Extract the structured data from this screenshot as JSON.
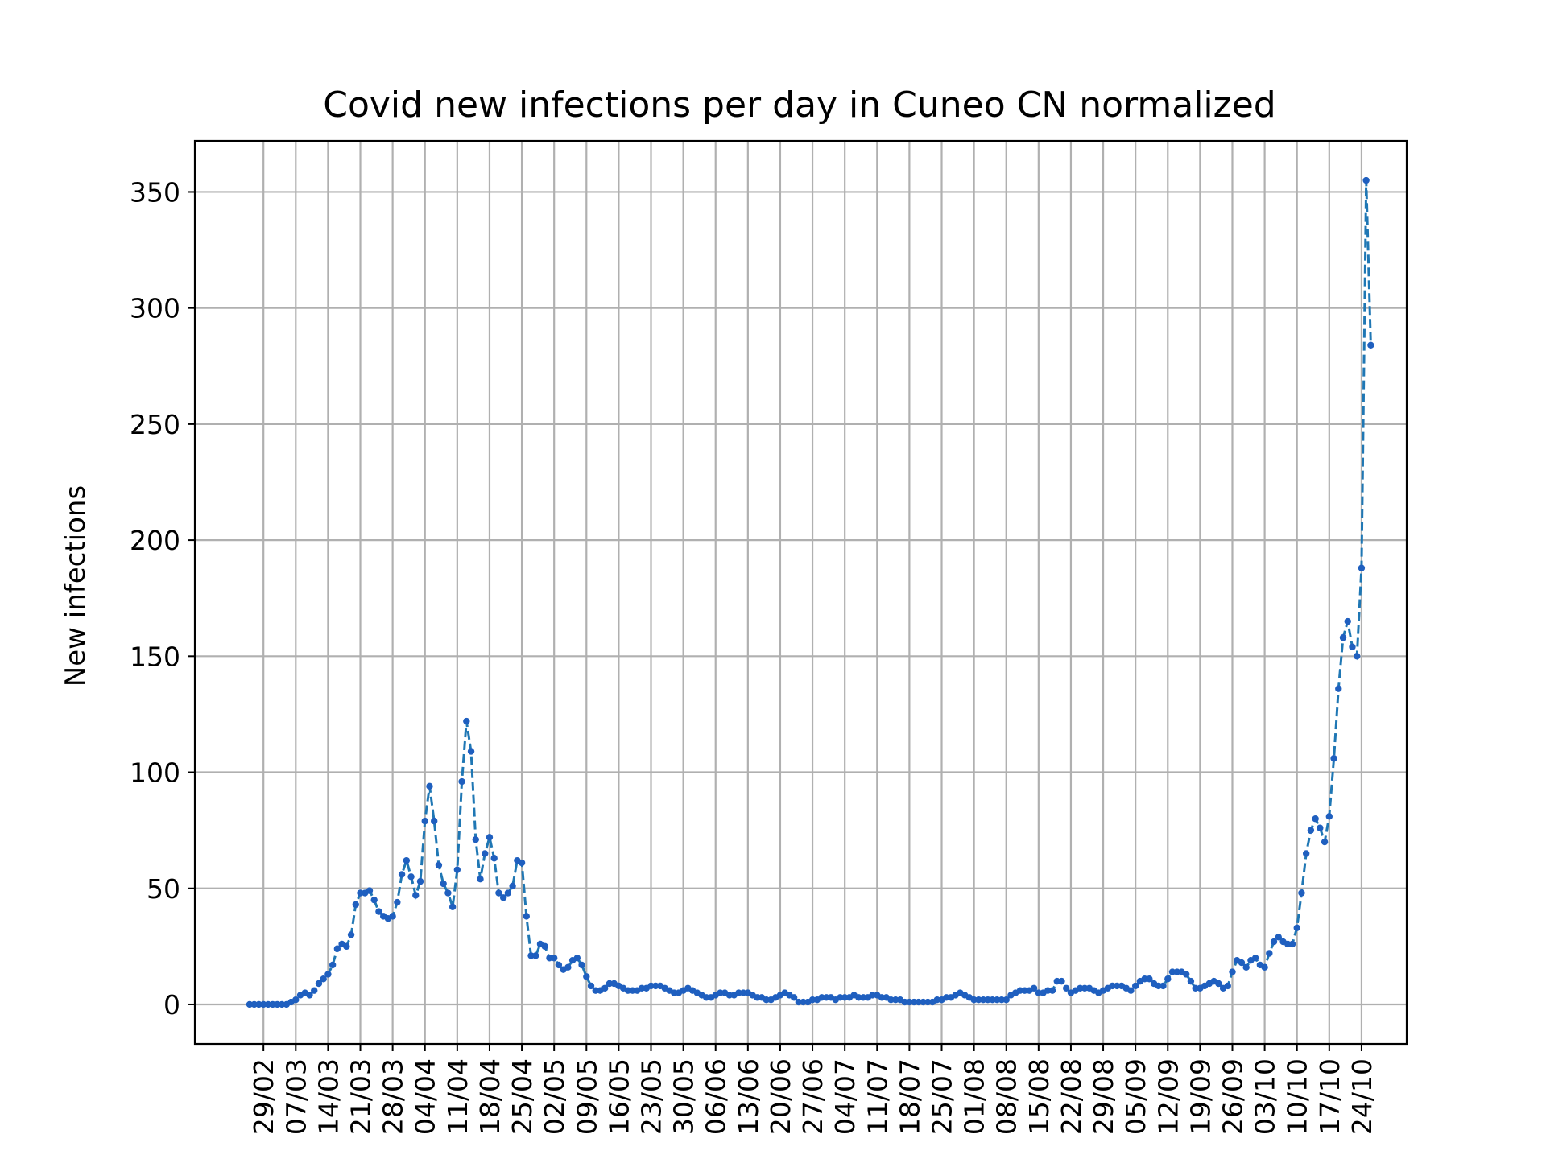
{
  "chart_data": {
    "type": "line",
    "title": "Covid new infections per day in Cuneo CN normalized",
    "xlabel": "",
    "ylabel": "New infections",
    "x_start": "2020-02-26",
    "x_tick_labels": [
      "29/02",
      "07/03",
      "14/03",
      "21/03",
      "28/03",
      "04/04",
      "11/04",
      "18/04",
      "25/04",
      "02/05",
      "09/05",
      "16/05",
      "23/05",
      "30/05",
      "06/06",
      "13/06",
      "20/06",
      "27/06",
      "04/07",
      "11/07",
      "18/07",
      "25/07",
      "01/08",
      "08/08",
      "15/08",
      "22/08",
      "29/08",
      "05/09",
      "12/09",
      "19/09",
      "26/09",
      "03/10",
      "10/10",
      "17/10",
      "24/10"
    ],
    "y_ticks": [
      0,
      50,
      100,
      150,
      200,
      250,
      300,
      350
    ],
    "ylim": [
      -17,
      372
    ],
    "grid": true,
    "colors": {
      "line": "#1f77b4",
      "marker": "#1f5fbf"
    },
    "series": [
      {
        "values": [
          0,
          0,
          0,
          0,
          0,
          0,
          0,
          0,
          0,
          1,
          2,
          4,
          5,
          4,
          6,
          9,
          11,
          13,
          17,
          24,
          26,
          25,
          30,
          43,
          48,
          48,
          49,
          45,
          40,
          38,
          37,
          38,
          44,
          56,
          62,
          55,
          47,
          53,
          79,
          94,
          79,
          60,
          52,
          48,
          42,
          58,
          96,
          122,
          109,
          71,
          54,
          65,
          72,
          63,
          48,
          46,
          48,
          51,
          62,
          61,
          38,
          21,
          21,
          26,
          25,
          20,
          20,
          17,
          15,
          16,
          19,
          20,
          17,
          12,
          8,
          6,
          6,
          7,
          9,
          9,
          8,
          7,
          6,
          6,
          6,
          7,
          7,
          8,
          8,
          8,
          7,
          6,
          5,
          5,
          6,
          7,
          6,
          5,
          4,
          3,
          3,
          4,
          5,
          5,
          4,
          4,
          5,
          5,
          5,
          4,
          3,
          3,
          2,
          2,
          3,
          4,
          5,
          4,
          3,
          1,
          1,
          1,
          2,
          2,
          3,
          3,
          3,
          2,
          3,
          3,
          3,
          4,
          3,
          3,
          3,
          4,
          4,
          3,
          3,
          2,
          2,
          2,
          1,
          1,
          1,
          1,
          1,
          1,
          1,
          2,
          2,
          3,
          3,
          4,
          5,
          4,
          3,
          2,
          2,
          2,
          2,
          2,
          2,
          2,
          2,
          4,
          5,
          6,
          6,
          6,
          7,
          5,
          5,
          6,
          6,
          10,
          10,
          7,
          5,
          6,
          7,
          7,
          7,
          6,
          5,
          6,
          7,
          8,
          8,
          8,
          7,
          6,
          8,
          10,
          11,
          11,
          9,
          8,
          8,
          11,
          14,
          14,
          14,
          13,
          10,
          7,
          7,
          8,
          9,
          10,
          9,
          7,
          8,
          14,
          19,
          18,
          16,
          19,
          20,
          17,
          16,
          22,
          27,
          29,
          27,
          26,
          26,
          33,
          48,
          65,
          75,
          80,
          76,
          70,
          81,
          106,
          136,
          158,
          165,
          154,
          150,
          188,
          355,
          284
        ]
      }
    ]
  }
}
